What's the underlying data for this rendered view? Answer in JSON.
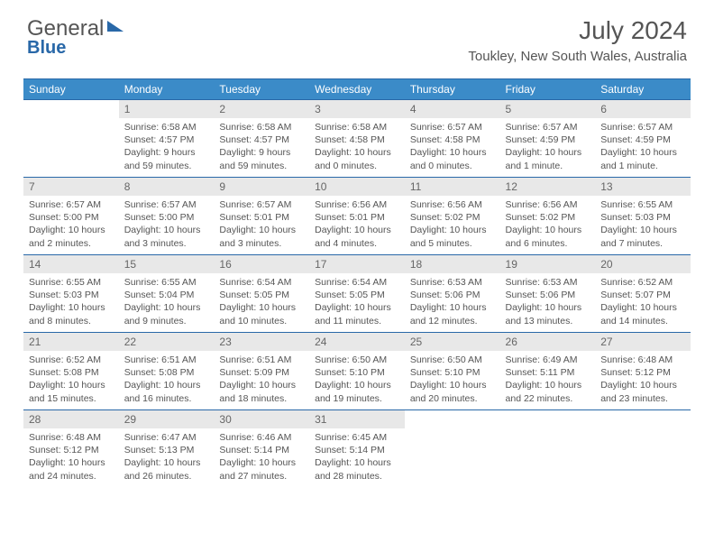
{
  "logo": {
    "part1": "General",
    "part2": "Blue"
  },
  "title": "July 2024",
  "location": "Toukley, New South Wales, Australia",
  "colors": {
    "header_bg": "#3b8bc8",
    "header_border": "#2968a8",
    "daynum_bg": "#e8e8e8",
    "text": "#555555"
  },
  "weekdays": [
    "Sunday",
    "Monday",
    "Tuesday",
    "Wednesday",
    "Thursday",
    "Friday",
    "Saturday"
  ],
  "weeks": [
    [
      null,
      {
        "n": "1",
        "sr": "6:58 AM",
        "ss": "4:57 PM",
        "dl": "9 hours and 59 minutes."
      },
      {
        "n": "2",
        "sr": "6:58 AM",
        "ss": "4:57 PM",
        "dl": "9 hours and 59 minutes."
      },
      {
        "n": "3",
        "sr": "6:58 AM",
        "ss": "4:58 PM",
        "dl": "10 hours and 0 minutes."
      },
      {
        "n": "4",
        "sr": "6:57 AM",
        "ss": "4:58 PM",
        "dl": "10 hours and 0 minutes."
      },
      {
        "n": "5",
        "sr": "6:57 AM",
        "ss": "4:59 PM",
        "dl": "10 hours and 1 minute."
      },
      {
        "n": "6",
        "sr": "6:57 AM",
        "ss": "4:59 PM",
        "dl": "10 hours and 1 minute."
      }
    ],
    [
      {
        "n": "7",
        "sr": "6:57 AM",
        "ss": "5:00 PM",
        "dl": "10 hours and 2 minutes."
      },
      {
        "n": "8",
        "sr": "6:57 AM",
        "ss": "5:00 PM",
        "dl": "10 hours and 3 minutes."
      },
      {
        "n": "9",
        "sr": "6:57 AM",
        "ss": "5:01 PM",
        "dl": "10 hours and 3 minutes."
      },
      {
        "n": "10",
        "sr": "6:56 AM",
        "ss": "5:01 PM",
        "dl": "10 hours and 4 minutes."
      },
      {
        "n": "11",
        "sr": "6:56 AM",
        "ss": "5:02 PM",
        "dl": "10 hours and 5 minutes."
      },
      {
        "n": "12",
        "sr": "6:56 AM",
        "ss": "5:02 PM",
        "dl": "10 hours and 6 minutes."
      },
      {
        "n": "13",
        "sr": "6:55 AM",
        "ss": "5:03 PM",
        "dl": "10 hours and 7 minutes."
      }
    ],
    [
      {
        "n": "14",
        "sr": "6:55 AM",
        "ss": "5:03 PM",
        "dl": "10 hours and 8 minutes."
      },
      {
        "n": "15",
        "sr": "6:55 AM",
        "ss": "5:04 PM",
        "dl": "10 hours and 9 minutes."
      },
      {
        "n": "16",
        "sr": "6:54 AM",
        "ss": "5:05 PM",
        "dl": "10 hours and 10 minutes."
      },
      {
        "n": "17",
        "sr": "6:54 AM",
        "ss": "5:05 PM",
        "dl": "10 hours and 11 minutes."
      },
      {
        "n": "18",
        "sr": "6:53 AM",
        "ss": "5:06 PM",
        "dl": "10 hours and 12 minutes."
      },
      {
        "n": "19",
        "sr": "6:53 AM",
        "ss": "5:06 PM",
        "dl": "10 hours and 13 minutes."
      },
      {
        "n": "20",
        "sr": "6:52 AM",
        "ss": "5:07 PM",
        "dl": "10 hours and 14 minutes."
      }
    ],
    [
      {
        "n": "21",
        "sr": "6:52 AM",
        "ss": "5:08 PM",
        "dl": "10 hours and 15 minutes."
      },
      {
        "n": "22",
        "sr": "6:51 AM",
        "ss": "5:08 PM",
        "dl": "10 hours and 16 minutes."
      },
      {
        "n": "23",
        "sr": "6:51 AM",
        "ss": "5:09 PM",
        "dl": "10 hours and 18 minutes."
      },
      {
        "n": "24",
        "sr": "6:50 AM",
        "ss": "5:10 PM",
        "dl": "10 hours and 19 minutes."
      },
      {
        "n": "25",
        "sr": "6:50 AM",
        "ss": "5:10 PM",
        "dl": "10 hours and 20 minutes."
      },
      {
        "n": "26",
        "sr": "6:49 AM",
        "ss": "5:11 PM",
        "dl": "10 hours and 22 minutes."
      },
      {
        "n": "27",
        "sr": "6:48 AM",
        "ss": "5:12 PM",
        "dl": "10 hours and 23 minutes."
      }
    ],
    [
      {
        "n": "28",
        "sr": "6:48 AM",
        "ss": "5:12 PM",
        "dl": "10 hours and 24 minutes."
      },
      {
        "n": "29",
        "sr": "6:47 AM",
        "ss": "5:13 PM",
        "dl": "10 hours and 26 minutes."
      },
      {
        "n": "30",
        "sr": "6:46 AM",
        "ss": "5:14 PM",
        "dl": "10 hours and 27 minutes."
      },
      {
        "n": "31",
        "sr": "6:45 AM",
        "ss": "5:14 PM",
        "dl": "10 hours and 28 minutes."
      },
      null,
      null,
      null
    ]
  ],
  "labels": {
    "sunrise": "Sunrise:",
    "sunset": "Sunset:",
    "daylight": "Daylight:"
  }
}
